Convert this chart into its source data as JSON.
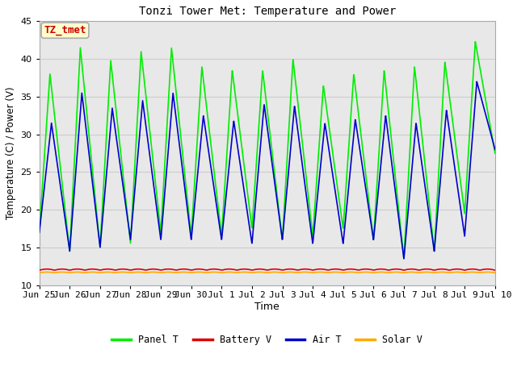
{
  "title": "Tonzi Tower Met: Temperature and Power",
  "xlabel": "Time",
  "ylabel": "Temperature (C) / Power (V)",
  "ylim": [
    10,
    45
  ],
  "annotation_text": "TZ_tmet",
  "annotation_color": "#cc0000",
  "annotation_bg": "#ffffcc",
  "annotation_border": "#aaaaaa",
  "legend_labels": [
    "Panel T",
    "Battery V",
    "Air T",
    "Solar V"
  ],
  "panel_color": "#00ee00",
  "battery_color": "#dd0000",
  "air_color": "#0000cc",
  "solar_color": "#ffaa00",
  "fig_bg": "#ffffff",
  "plot_bg": "#e8e8e8",
  "battery_level": 12.0,
  "solar_level": 11.65,
  "x_tick_labels": [
    "Jun 25",
    "Jun 26",
    "Jun 27",
    "Jun 28",
    "Jun 29",
    "Jun 30",
    "Jul 1",
    "Jul 2",
    "Jul 3",
    "Jul 4",
    "Jul 5",
    "Jul 6",
    "Jul 7",
    "Jul 8",
    "Jul 9",
    "Jul 10"
  ],
  "grid_color": "#cccccc",
  "line_width": 1.2,
  "yticks": [
    10,
    15,
    20,
    25,
    30,
    35,
    40,
    45
  ],
  "panel_day_data": {
    "peaks_x": [
      0.35,
      1.35,
      2.35,
      3.35,
      4.35,
      5.35,
      6.35,
      7.35,
      8.35,
      9.35,
      10.35,
      11.35,
      12.35,
      13.35,
      14.35
    ],
    "peaks_y": [
      38.0,
      41.5,
      39.8,
      41.0,
      41.5,
      39.0,
      38.5,
      38.5,
      40.0,
      36.5,
      38.0,
      38.5,
      39.0,
      39.6,
      42.3
    ],
    "troughs_x": [
      0.0,
      1.0,
      2.0,
      3.0,
      4.0,
      5.0,
      6.0,
      7.0,
      8.0,
      9.0,
      10.0,
      11.0,
      12.0,
      13.0,
      14.0,
      15.0
    ],
    "troughs_y": [
      17.0,
      14.5,
      15.0,
      15.5,
      17.0,
      16.5,
      16.5,
      17.5,
      16.0,
      16.5,
      17.5,
      16.0,
      13.5,
      14.5,
      19.5,
      27.5
    ]
  },
  "air_day_data": {
    "peaks_x": [
      0.4,
      1.4,
      2.4,
      3.4,
      4.4,
      5.4,
      6.4,
      7.4,
      8.4,
      9.4,
      10.4,
      11.4,
      12.4,
      13.4,
      14.4
    ],
    "peaks_y": [
      31.5,
      35.5,
      33.5,
      34.5,
      35.5,
      32.5,
      31.8,
      34.0,
      33.8,
      31.5,
      32.0,
      32.5,
      31.5,
      33.2,
      37.0
    ],
    "troughs_x": [
      0.0,
      1.0,
      2.0,
      3.0,
      4.0,
      5.0,
      6.0,
      7.0,
      8.0,
      9.0,
      10.0,
      11.0,
      12.0,
      13.0,
      14.0,
      15.0
    ],
    "troughs_y": [
      17.0,
      14.5,
      15.0,
      16.0,
      16.0,
      16.0,
      16.0,
      15.5,
      16.0,
      15.5,
      15.5,
      16.0,
      13.5,
      14.5,
      16.5,
      28.0
    ]
  }
}
